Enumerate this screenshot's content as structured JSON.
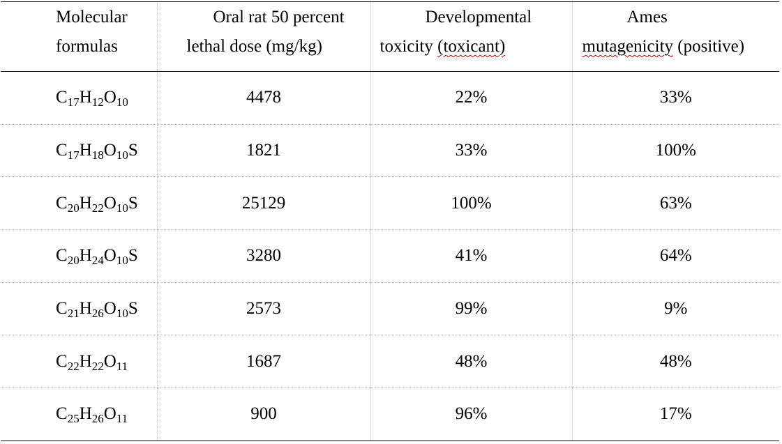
{
  "table": {
    "headers": [
      [
        "Molecular",
        "formulas"
      ],
      [
        "Oral rat 50 percent",
        "lethal dose (mg/kg)"
      ],
      [
        "Developmental",
        "toxicity (toxicant)"
      ],
      [
        "Ames",
        "mutagenicity (positive)"
      ]
    ],
    "rows": [
      {
        "formula": [
          [
            "C",
            "17"
          ],
          [
            "H",
            "12"
          ],
          [
            "O",
            "10"
          ]
        ],
        "ld50": "4478",
        "dev_tox": "22%",
        "ames": "33%"
      },
      {
        "formula": [
          [
            "C",
            "17"
          ],
          [
            "H",
            "18"
          ],
          [
            "O",
            "10"
          ],
          [
            "S",
            ""
          ]
        ],
        "ld50": "1821",
        "dev_tox": "33%",
        "ames": "100%"
      },
      {
        "formula": [
          [
            "C",
            "20"
          ],
          [
            "H",
            "22"
          ],
          [
            "O",
            "10"
          ],
          [
            "S",
            ""
          ]
        ],
        "ld50": "25129",
        "dev_tox": "100%",
        "ames": "63%"
      },
      {
        "formula": [
          [
            "C",
            "20"
          ],
          [
            "H",
            "24"
          ],
          [
            "O",
            "10"
          ],
          [
            "S",
            ""
          ]
        ],
        "ld50": "3280",
        "dev_tox": "41%",
        "ames": "64%"
      },
      {
        "formula": [
          [
            "C",
            "21"
          ],
          [
            "H",
            "26"
          ],
          [
            "O",
            "10"
          ],
          [
            "S",
            ""
          ]
        ],
        "ld50": "2573",
        "dev_tox": "99%",
        "ames": "9%"
      },
      {
        "formula": [
          [
            "C",
            "22"
          ],
          [
            "H",
            "22"
          ],
          [
            "O",
            "11"
          ]
        ],
        "ld50": "1687",
        "dev_tox": "48%",
        "ames": "48%"
      },
      {
        "formula": [
          [
            "C",
            "25"
          ],
          [
            "H",
            "26"
          ],
          [
            "O",
            "11"
          ]
        ],
        "ld50": "900",
        "dev_tox": "96%",
        "ames": "17%"
      }
    ]
  }
}
